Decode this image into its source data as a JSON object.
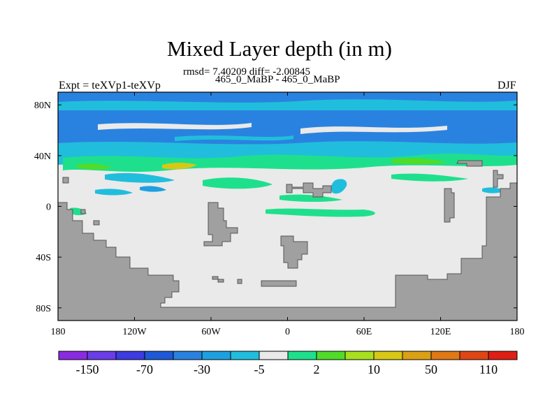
{
  "chart_data": {
    "type": "heatmap",
    "title": "Mixed Layer depth (in m)",
    "stats_line": "rmsd= 7.40209 diff= -2.00845",
    "subtitle": "465_0_MaBP - 465_0_MaBP",
    "left_label": "Expt = teXVp1-teXVp",
    "right_label": "DJF",
    "xlabel": "",
    "ylabel": "",
    "xlim": [
      -180,
      180
    ],
    "ylim": [
      -90,
      90
    ],
    "x_ticks": [
      {
        "value": -180,
        "label": "180"
      },
      {
        "value": -120,
        "label": "120W"
      },
      {
        "value": -60,
        "label": "60W"
      },
      {
        "value": 0,
        "label": "0"
      },
      {
        "value": 60,
        "label": "60E"
      },
      {
        "value": 120,
        "label": "120E"
      },
      {
        "value": 180,
        "label": "180"
      }
    ],
    "y_ticks": [
      {
        "value": 80,
        "label": "80N"
      },
      {
        "value": 40,
        "label": "40N"
      },
      {
        "value": 0,
        "label": "0"
      },
      {
        "value": -40,
        "label": "40S"
      },
      {
        "value": -80,
        "label": "80S"
      }
    ],
    "colorbar": {
      "colors": [
        "#8a2be2",
        "#6a3de8",
        "#3c3ce0",
        "#1e5ad8",
        "#2a82e0",
        "#1ea0e0",
        "#20bedc",
        "#eaeaea",
        "#1ee08c",
        "#50dc28",
        "#a8e01e",
        "#d6c814",
        "#dca014",
        "#e07814",
        "#e04614",
        "#e01e14"
      ],
      "labels": [
        "-150",
        "-70",
        "-30",
        "-5",
        "2",
        "10",
        "50",
        "110"
      ]
    },
    "land_color": "#a0a0a0",
    "no_change_color": "#eaeaea"
  }
}
